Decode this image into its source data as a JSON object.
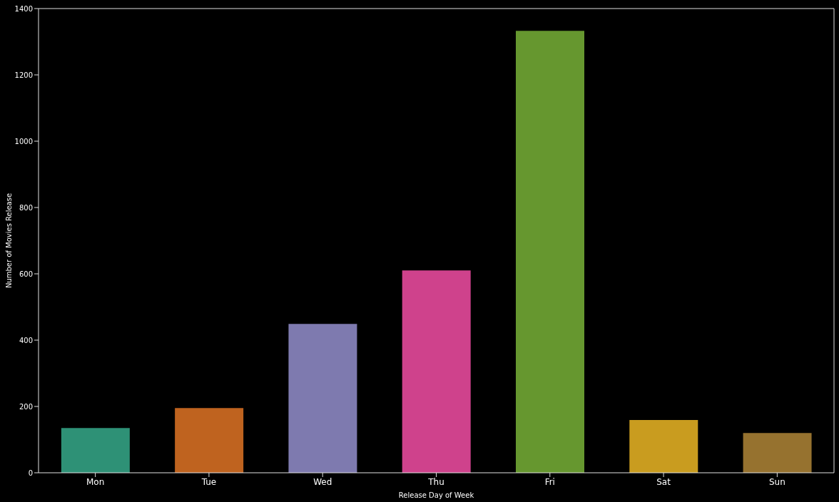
{
  "chart_data": {
    "type": "bar",
    "xlabel": "Release Day of Week",
    "ylabel": "Number of Movies Release",
    "categories": [
      "Mon",
      "Tue",
      "Wed",
      "Thu",
      "Fri",
      "Sat",
      "Sun"
    ],
    "values": [
      135,
      195,
      449,
      610,
      1333,
      159,
      120
    ],
    "colors": [
      "#2e9176",
      "#bf631f",
      "#7e7aaf",
      "#cf428c",
      "#66972f",
      "#c99c1f",
      "#96722f"
    ],
    "ylim": [
      0,
      1400
    ],
    "yticks": [
      0,
      200,
      400,
      600,
      800,
      1000,
      1200,
      1400
    ],
    "grid": false,
    "legend": false
  }
}
